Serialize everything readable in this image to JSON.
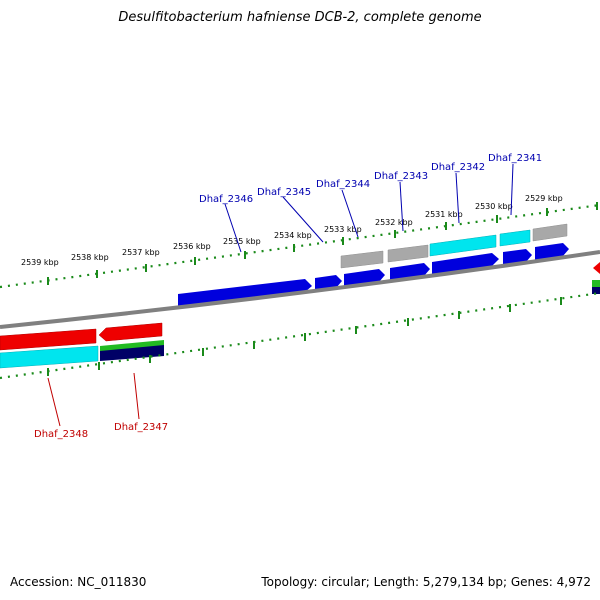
{
  "title": "Desulfitobacterium hafniense DCB-2, complete genome",
  "footer": {
    "accession": "Accession: NC_011830",
    "stats": "Topology: circular; Length: 5,279,134 bp; Genes: 4,972"
  },
  "scale_ticks": [
    "2539 kbp",
    "2538 kbp",
    "2537 kbp",
    "2536 kbp",
    "2535 kbp",
    "2534 kbp",
    "2533 kbp",
    "2532 kbp",
    "2531 kbp",
    "2530 kbp",
    "2529 kbp"
  ],
  "genes_top": [
    "Dhaf_2346",
    "Dhaf_2345",
    "Dhaf_2344",
    "Dhaf_2343",
    "Dhaf_2342",
    "Dhaf_2341"
  ],
  "genes_bottom": [
    "Dhaf_2348",
    "Dhaf_2347"
  ],
  "colors": {
    "blue": "#0000dd",
    "cyan": "#00e5ee",
    "gray": "#a8a8a8",
    "red": "#ee0000",
    "green": "#22bb22",
    "navy": "#000066",
    "scale": "#1a8a1a",
    "backbone": "#808080"
  }
}
